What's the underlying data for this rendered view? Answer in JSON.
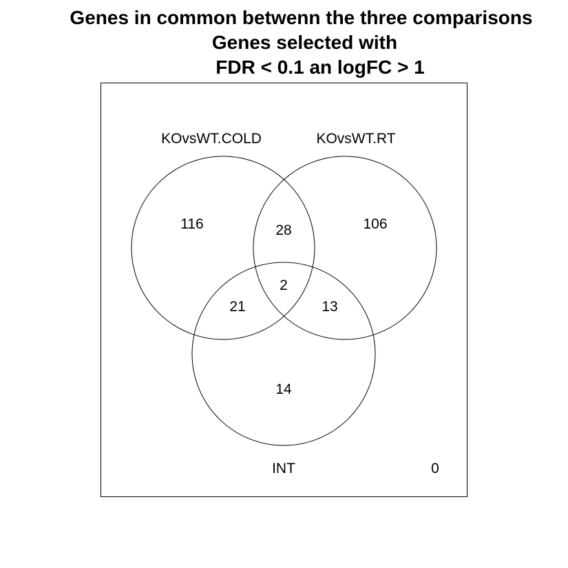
{
  "title": {
    "line1": "Genes in common betwenn the three comparisons",
    "line2": "Genes selected with",
    "line3": "FDR < 0.1 an logFC > 1"
  },
  "sets": {
    "a": "KOvsWT.COLD",
    "b": "KOvsWT.RT",
    "c": "INT"
  },
  "counts": {
    "only_a": "116",
    "only_b": "106",
    "only_c": "14",
    "a_and_b": "28",
    "a_and_c": "21",
    "b_and_c": "13",
    "a_b_c": "2",
    "none": "0"
  }
}
